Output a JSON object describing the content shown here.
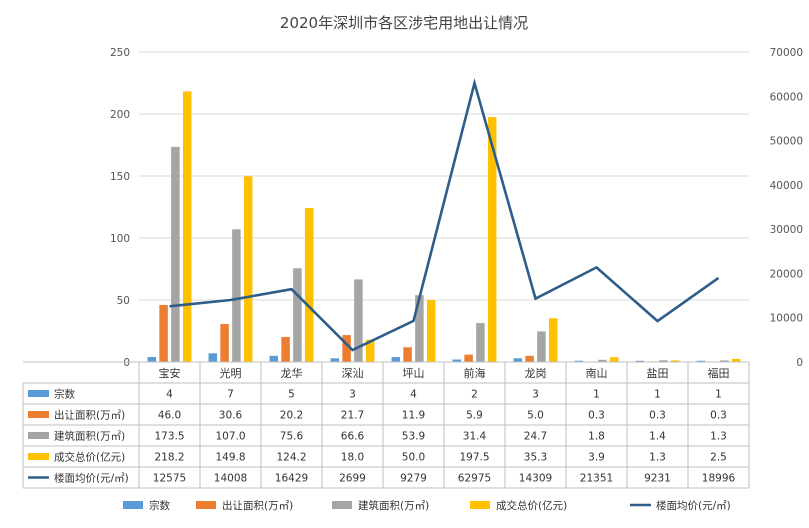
{
  "chart_data": {
    "type": "bar",
    "title": "2020年深圳市各区涉宅用地出让情况",
    "categories": [
      "宝安",
      "光明",
      "龙华",
      "深汕",
      "坪山",
      "前海",
      "龙岗",
      "南山",
      "盐田",
      "福田"
    ],
    "ylim": [
      0,
      250
    ],
    "y_ticks": [
      "0",
      "50",
      "100",
      "150",
      "200",
      "250"
    ],
    "y2lim": [
      0,
      70000
    ],
    "y2_ticks": [
      "0",
      "10000",
      "20000",
      "30000",
      "40000",
      "50000",
      "60000",
      "70000"
    ],
    "grid": true,
    "legend_placement": "bottom",
    "series": [
      {
        "name": "宗数",
        "kind": "bar",
        "axis": "left",
        "color": "#5b9bd5",
        "values": [
          4,
          7,
          5,
          3,
          4,
          2,
          3,
          1,
          1,
          1
        ],
        "labels": [
          "4",
          "7",
          "5",
          "3",
          "4",
          "2",
          "3",
          "1",
          "1",
          "1"
        ]
      },
      {
        "name": "出让面积(万㎡)",
        "kind": "bar",
        "axis": "left",
        "color": "#ed7d31",
        "values": [
          46.0,
          30.6,
          20.2,
          21.7,
          11.9,
          5.9,
          5.0,
          0.3,
          0.3,
          0.3
        ],
        "labels": [
          "46.0",
          "30.6",
          "20.2",
          "21.7",
          "11.9",
          "5.9",
          "5.0",
          "0.3",
          "0.3",
          "0.3"
        ]
      },
      {
        "name": "建筑面积(万㎡)",
        "kind": "bar",
        "axis": "left",
        "color": "#a5a5a5",
        "values": [
          173.5,
          107.0,
          75.6,
          66.6,
          53.9,
          31.4,
          24.7,
          1.8,
          1.4,
          1.3
        ],
        "labels": [
          "173.5",
          "107.0",
          "75.6",
          "66.6",
          "53.9",
          "31.4",
          "24.7",
          "1.8",
          "1.4",
          "1.3"
        ]
      },
      {
        "name": "成交总价(亿元)",
        "kind": "bar",
        "axis": "left",
        "color": "#ffc000",
        "values": [
          218.2,
          149.8,
          124.2,
          18.0,
          50.0,
          197.5,
          35.3,
          3.9,
          1.3,
          2.5
        ],
        "labels": [
          "218.2",
          "149.8",
          "124.2",
          "18.0",
          "50.0",
          "197.5",
          "35.3",
          "3.9",
          "1.3",
          "2.5"
        ]
      },
      {
        "name": "楼面均价(元/㎡)",
        "kind": "line",
        "axis": "right",
        "color": "#2e5d8a",
        "values": [
          12575,
          14008,
          16429,
          2699,
          9279,
          62975,
          14309,
          21351,
          9231,
          18996
        ],
        "labels": [
          "12575",
          "14008",
          "16429",
          "2699",
          "9279",
          "62975",
          "14309",
          "21351",
          "9231",
          "18996"
        ]
      }
    ]
  }
}
